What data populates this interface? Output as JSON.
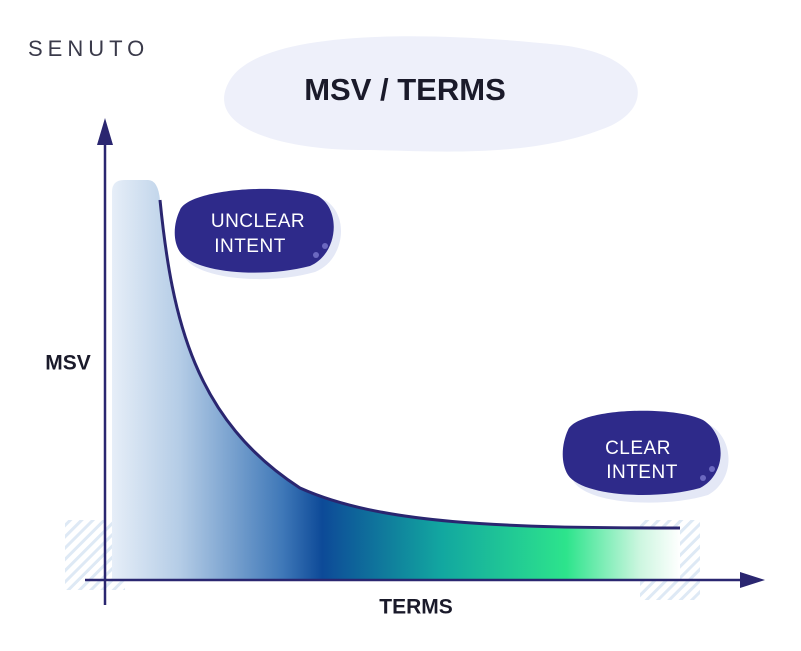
{
  "logo": "SENUTO",
  "title": "MSV / TERMS",
  "axes": {
    "y_label": "MSV",
    "x_label": "TERMS"
  },
  "callouts": [
    {
      "lines": [
        "UNCLEAR",
        "INTENT"
      ]
    },
    {
      "lines": [
        "CLEAR",
        "INTENT"
      ]
    }
  ]
}
